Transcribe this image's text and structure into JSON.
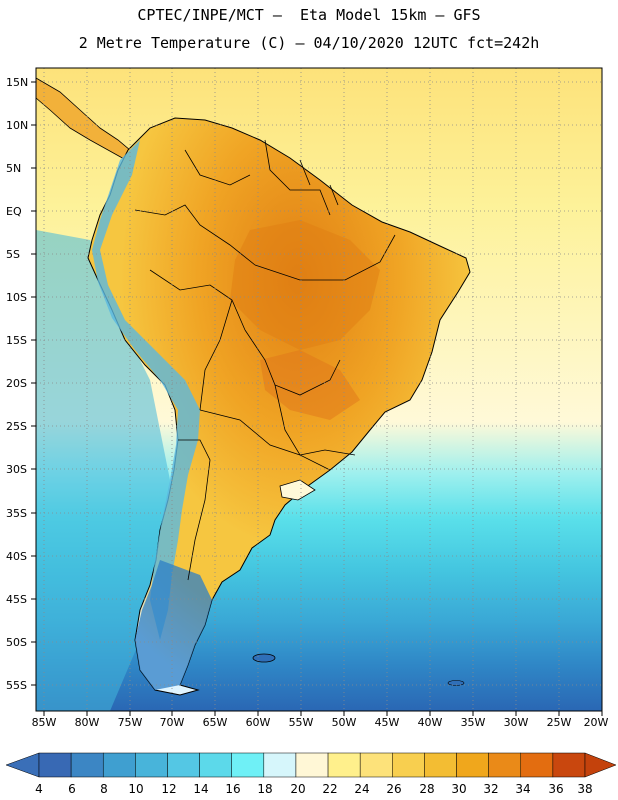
{
  "header": {
    "line1": "CPTEC/INPE/MCT –  Eta Model 15km – GFS",
    "line2": "2 Metre Temperature (C) – 04/10/2020 12UTC fct=242h"
  },
  "map": {
    "lat_labels": [
      "15N",
      "10N",
      "5N",
      "EQ",
      "5S",
      "10S",
      "15S",
      "20S",
      "25S",
      "30S",
      "35S",
      "40S",
      "45S",
      "50S",
      "55S"
    ],
    "lon_labels": [
      "85W",
      "80W",
      "75W",
      "70W",
      "65W",
      "60W",
      "55W",
      "50W",
      "45W",
      "40W",
      "35W",
      "30W",
      "25W",
      "20W"
    ],
    "ocean_gradient": [
      "#fde27a",
      "#fdf29a",
      "#fff9d8",
      "#9ff0ee",
      "#5ae0ea",
      "#44c6e0",
      "#3aa8d6",
      "#2f86c6",
      "#2a67b4"
    ],
    "land_colors": {
      "hot": "#e07f14",
      "warm": "#f0a424",
      "mild": "#f6c640",
      "cool": "#dff4ff",
      "cold": "#2e7fc6"
    }
  },
  "colorbar": {
    "labels": [
      "4",
      "6",
      "8",
      "10",
      "12",
      "14",
      "16",
      "18",
      "20",
      "22",
      "24",
      "26",
      "28",
      "30",
      "32",
      "34",
      "36",
      "38"
    ],
    "colors": [
      "#3869b4",
      "#3c86c4",
      "#3f9fd0",
      "#48b4da",
      "#54c7e4",
      "#5cd9ea",
      "#6ff0f6",
      "#d6f6fb",
      "#fff7d6",
      "#fff08c",
      "#fde27a",
      "#f8cf4f",
      "#f3bd33",
      "#f0a71c",
      "#ea8a18",
      "#e36d10",
      "#c9470e"
    ],
    "low_color": "#3a6fb8",
    "high_color": "#c4420c"
  }
}
